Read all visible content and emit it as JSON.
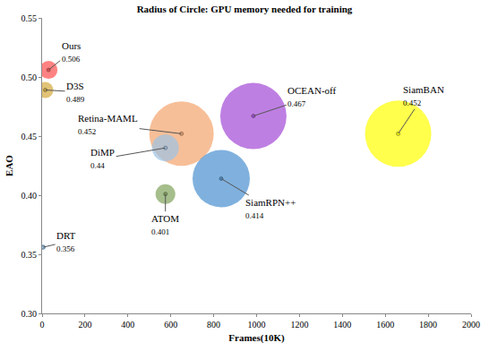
{
  "chart_data": {
    "type": "scatter",
    "marker": "bubble",
    "title": "Radius of Circle: GPU memory needed for training",
    "x_label": "Frames(10K)",
    "y_label": "EAO",
    "labels": [
      "Ours",
      "D3S",
      "Retina-MAML",
      "DiMP",
      "OCEAN-off",
      "SiamBAN",
      "SiamRPN++",
      "ATOM",
      "DRT"
    ],
    "x": [
      30,
      15,
      650,
      575,
      985,
      1660,
      835,
      575,
      5
    ],
    "values": [
      0.506,
      0.489,
      0.452,
      0.44,
      0.467,
      0.452,
      0.414,
      0.401,
      0.356
    ],
    "size": [
      20,
      18,
      72,
      30,
      74,
      74,
      64,
      22,
      6
    ],
    "colors": [
      "#ff4d4d",
      "#d4aa3c",
      "#f4a46c",
      "#9dc3e6",
      "#a349d6",
      "#ffff00",
      "#4a90d0",
      "#7fa35a",
      "#9dc3e6"
    ],
    "data_labels": true,
    "grid": false,
    "xlim": [
      0,
      2000
    ],
    "xticks": [
      0,
      200,
      400,
      600,
      800,
      1000,
      1200,
      1400,
      1600,
      1800,
      2000
    ],
    "ylim": [
      0.3,
      0.55
    ],
    "yticks": [
      {
        "value": 0.3,
        "label": "0.30"
      },
      0.35,
      {
        "value": 0.4,
        "label": "0.40"
      },
      0.45,
      {
        "value": 0.5,
        "label": "0.50"
      },
      0.55
    ]
  }
}
